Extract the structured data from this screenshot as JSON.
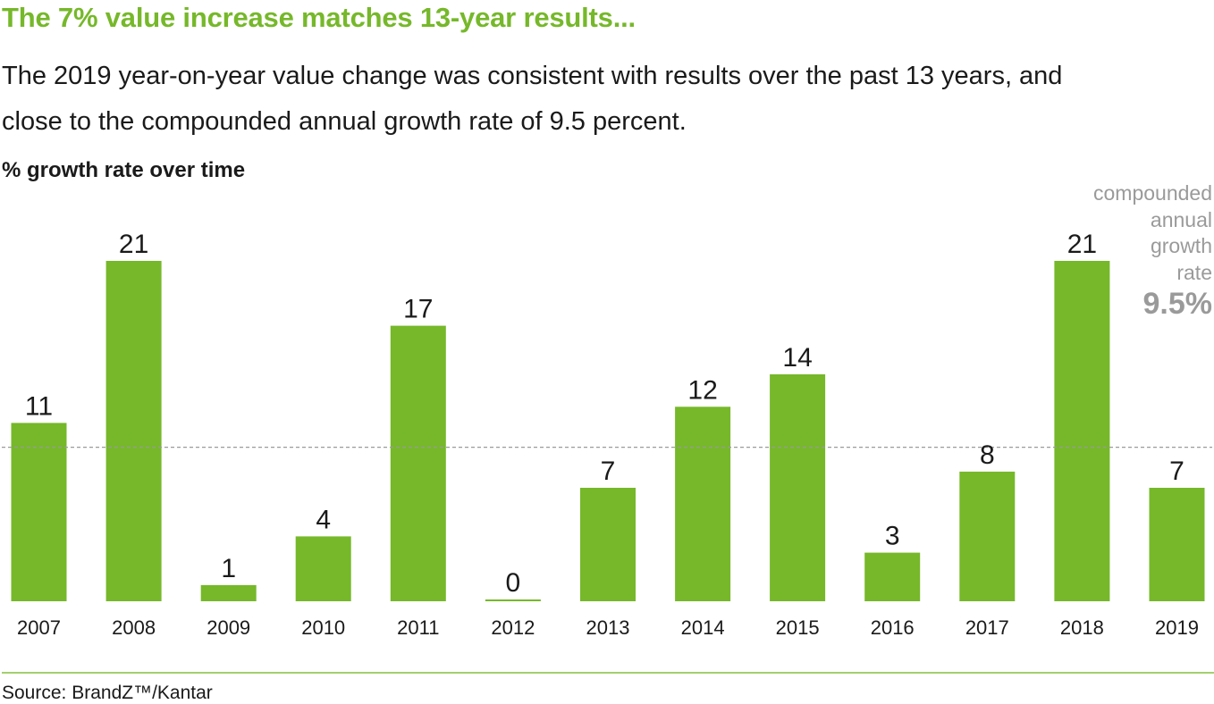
{
  "headline": "The 7% value increase matches 13-year results...",
  "subtitle": "The 2019 year-on-year value change was consistent with results over the past 13 years, and close to the compounded annual growth rate of 9.5 percent.",
  "chart_label": "% growth rate over time",
  "cagr": {
    "label": "compounded\nannual\ngrowth\nrate",
    "value": "9.5%"
  },
  "source": "Source: BrandZ™/Kantar",
  "colors": {
    "bar": "#76b82a",
    "headline": "#76b82a",
    "reference_line": "#9a9a9a",
    "muted_text": "#9a9a9a"
  },
  "chart_data": {
    "type": "bar",
    "title": "% growth rate over time",
    "xlabel": "",
    "ylabel": "% growth rate",
    "categories": [
      "2007",
      "2008",
      "2009",
      "2010",
      "2011",
      "2012",
      "2013",
      "2014",
      "2015",
      "2016",
      "2017",
      "2018",
      "2019"
    ],
    "values": [
      11,
      21,
      1,
      4,
      17,
      0,
      7,
      12,
      14,
      3,
      8,
      21,
      7
    ],
    "ylim": [
      0,
      21
    ],
    "reference_line": {
      "value": 9.5,
      "style": "dashed",
      "label": "compounded annual growth rate"
    },
    "grid": false,
    "legend": "none"
  }
}
